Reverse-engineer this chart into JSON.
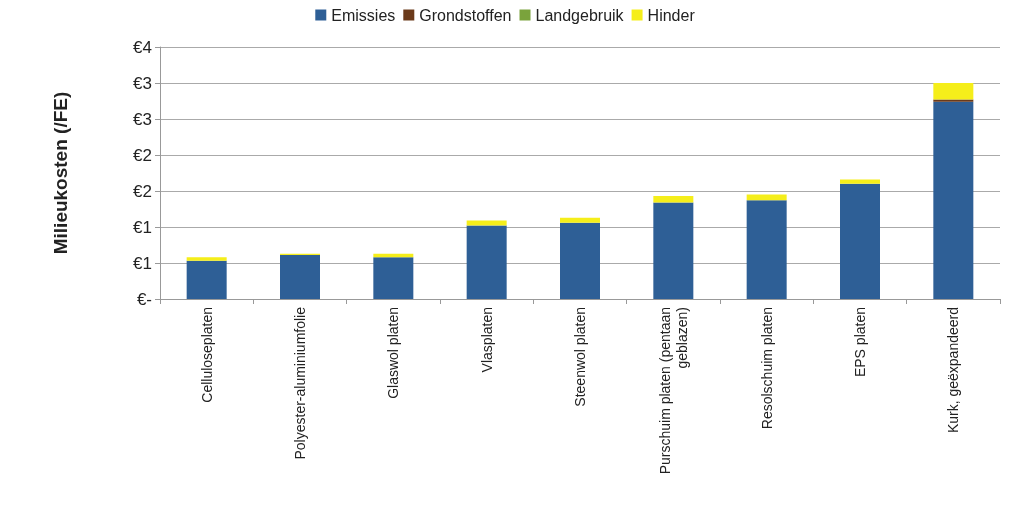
{
  "chart_data": {
    "type": "bar",
    "stacked": true,
    "ylabel": "Milieukosten (/FE)",
    "categories": [
      "Celluloseplaten",
      "Polyester-aluminiumfolie",
      "Glaswol platen",
      "Vlasplaten",
      "Steenwol platen",
      "Purschuim platen (pentaan\ngeblazen)",
      "Resolschuim platen",
      "EPS platen",
      "Kurk, geëxpandeerd"
    ],
    "series": [
      {
        "name": "Emissies",
        "color": "#2e5f96",
        "values": [
          0.53,
          0.61,
          0.58,
          1.02,
          1.06,
          1.34,
          1.37,
          1.6,
          2.74
        ]
      },
      {
        "name": "Grondstoffen",
        "color": "#6b3a1a",
        "values": [
          null,
          null,
          null,
          null,
          null,
          null,
          null,
          null,
          0.03
        ]
      },
      {
        "name": "Landgebruik",
        "color": "#7aa33c",
        "values": [
          null,
          null,
          null,
          null,
          null,
          null,
          null,
          null,
          null
        ]
      },
      {
        "name": "Hinder",
        "color": "#f5ee1a",
        "values": [
          0.05,
          0.02,
          0.05,
          0.07,
          0.07,
          0.09,
          0.08,
          0.06,
          0.23
        ]
      }
    ],
    "ylim": [
      0,
      3.5
    ],
    "yticks": [
      {
        "value": 0,
        "label": "€-"
      },
      {
        "value": 0.5,
        "label": "€1"
      },
      {
        "value": 1,
        "label": "€1"
      },
      {
        "value": 1.5,
        "label": "€2"
      },
      {
        "value": 2,
        "label": "€2"
      },
      {
        "value": 2.5,
        "label": "€3"
      },
      {
        "value": 3,
        "label": "€3"
      },
      {
        "value": 3.5,
        "label": "€4"
      }
    ],
    "grid": "y",
    "legend": "top"
  }
}
